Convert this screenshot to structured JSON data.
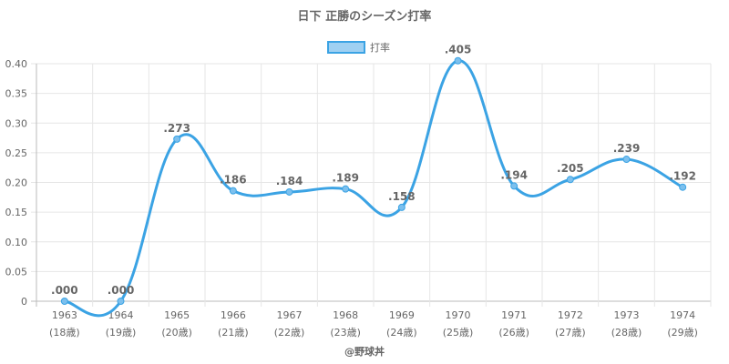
{
  "chart_data": {
    "type": "line",
    "title": "日下 正勝のシーズン打率",
    "categories": [
      "1963",
      "1964",
      "1965",
      "1966",
      "1967",
      "1968",
      "1969",
      "1970",
      "1971",
      "1972",
      "1973",
      "1974"
    ],
    "ages": [
      "(18歳)",
      "(19歳)",
      "(20歳)",
      "(21歳)",
      "(22歳)",
      "(23歳)",
      "(24歳)",
      "(25歳)",
      "(26歳)",
      "(27歳)",
      "(28歳)",
      "(29歳)"
    ],
    "series": [
      {
        "name": "打率",
        "values": [
          0.0,
          0.0,
          0.273,
          0.186,
          0.184,
          0.189,
          0.158,
          0.405,
          0.194,
          0.205,
          0.239,
          0.192
        ],
        "labels": [
          ".000",
          ".000",
          ".273",
          ".186",
          ".184",
          ".189",
          ".158",
          ".405",
          ".194",
          ".205",
          ".239",
          ".192"
        ],
        "color": "#3ba3e4"
      }
    ],
    "ylim": [
      0,
      0.4
    ],
    "yticks": [
      0,
      0.05,
      0.1,
      0.15,
      0.2,
      0.25,
      0.3,
      0.35,
      0.4
    ],
    "ytick_labels": [
      "0",
      "0.05",
      "0.10",
      "0.15",
      "0.20",
      "0.25",
      "0.30",
      "0.35",
      "0.40"
    ],
    "grid": true,
    "legend_position": "top-center",
    "credit": "@野球丼"
  }
}
